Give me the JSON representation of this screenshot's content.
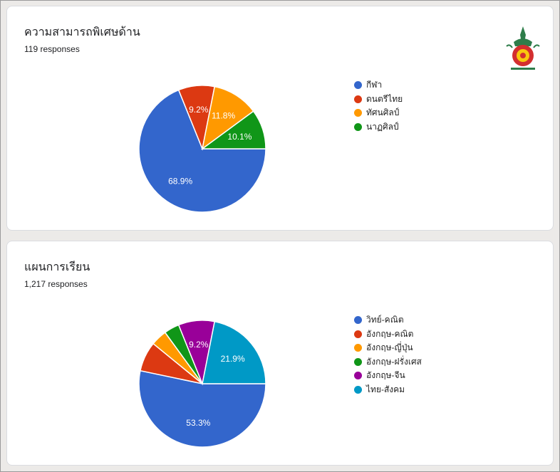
{
  "charts": [
    {
      "title": "ความสามารถพิเศษด้าน",
      "responses": "119 responses",
      "chart_data": {
        "type": "pie",
        "title": "ความสามารถพิเศษด้าน",
        "categories": [
          "กีฬา",
          "ดนตรีไทย",
          "ทัศนศิลป์",
          "นาฏศิลป์"
        ],
        "values": [
          68.9,
          9.2,
          11.8,
          10.1
        ],
        "labels": [
          "68.9%",
          "9.2%",
          "11.8%",
          "10.1%"
        ],
        "colors": [
          "#3366cc",
          "#dc3912",
          "#ff9900",
          "#109618"
        ],
        "legend": "right"
      }
    },
    {
      "title": "แผนการเรียน",
      "responses": "1,217 responses",
      "chart_data": {
        "type": "pie",
        "title": "แผนการเรียน",
        "categories": [
          "วิทย์-คณิต",
          "อังกฤษ-คณิต",
          "อังกฤษ-ญี่ปุ่น",
          "อังกฤษ-ฝรั่งเศส",
          "อังกฤษ-จีน",
          "ไทย-สังคม"
        ],
        "values": [
          53.3,
          7.6,
          4.1,
          3.9,
          9.2,
          21.9
        ],
        "labels": [
          "53.3%",
          "",
          "",
          "",
          "9.2%",
          "21.9%"
        ],
        "colors": [
          "#3366cc",
          "#dc3912",
          "#ff9900",
          "#109618",
          "#990099",
          "#0099c6"
        ],
        "legend": "right"
      }
    }
  ]
}
